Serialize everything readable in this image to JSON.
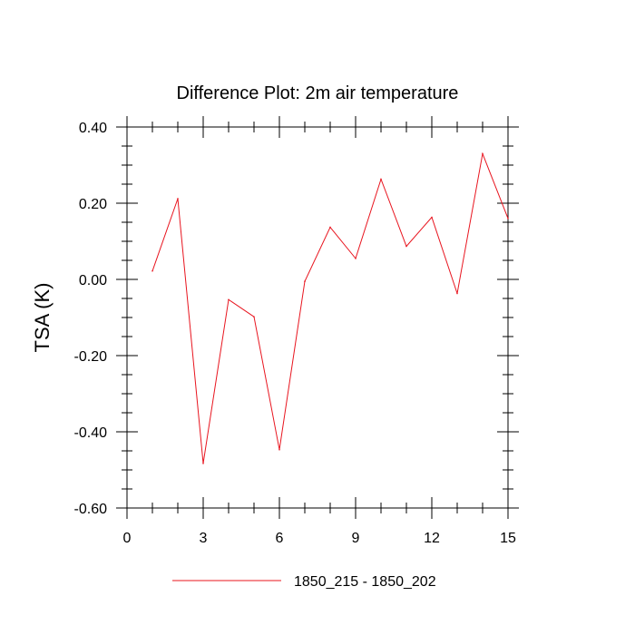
{
  "chart_data": {
    "type": "line",
    "title": "Difference Plot: 2m air temperature",
    "xlabel": "",
    "ylabel": "TSA  (K)",
    "xlim": [
      0,
      15
    ],
    "ylim": [
      -0.6,
      0.4
    ],
    "x_ticks": [
      0,
      3,
      6,
      9,
      12,
      15
    ],
    "x_tick_labels": [
      "0",
      "3",
      "6",
      "9",
      "12",
      "15"
    ],
    "y_ticks": [
      0.4,
      0.2,
      0.0,
      -0.2,
      -0.4,
      -0.6
    ],
    "y_tick_labels": [
      "0.40",
      "0.20",
      "0.00",
      "-0.20",
      "-0.40",
      "-0.60"
    ],
    "grid": false,
    "legend_position": "bottom-center",
    "series": [
      {
        "name": "1850_215 - 1850_202",
        "color": "#e8141e",
        "x": [
          1,
          2,
          3,
          4,
          5,
          6,
          7,
          8,
          9,
          10,
          11,
          12,
          13,
          14,
          15
        ],
        "values": [
          0.022,
          0.212,
          -0.483,
          -0.053,
          -0.098,
          -0.447,
          -0.005,
          0.137,
          0.055,
          0.263,
          0.087,
          0.163,
          -0.037,
          0.33,
          0.16
        ]
      }
    ]
  }
}
